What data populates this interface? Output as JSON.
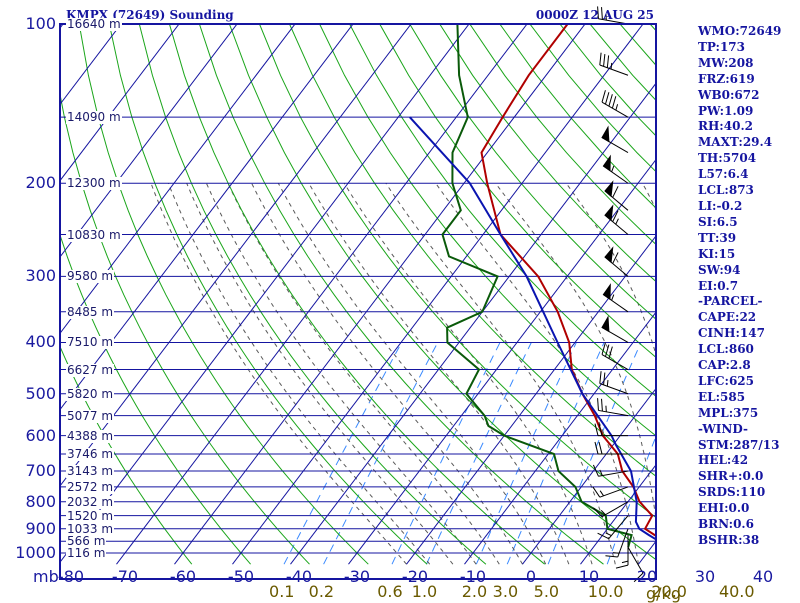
{
  "header": {
    "station": "KMPX (72649) Sounding",
    "time": "0000Z 12 AUG 25"
  },
  "indices": [
    "WMO:72649",
    "TP:173",
    "MW:208",
    "FRZ:619",
    "WB0:672",
    "PW:1.09",
    "RH:40.2",
    "MAXT:29.4",
    "TH:5704",
    "L57:6.4",
    "LCL:873",
    "LI:-0.2",
    "SI:6.5",
    "TT:39",
    "KI:15",
    "SW:94",
    "EI:0.7",
    "-PARCEL-",
    "CAPE:22",
    "CINH:147",
    "LCL:860",
    "CAP:2.8",
    "LFC:625",
    "EL:585",
    "MPL:375",
    "-WIND-",
    "STM:287/13",
    "HEL:42",
    "SHR+:0.0",
    "SRDS:110",
    "EHI:0.0",
    "BRN:0.6",
    "BSHR:38"
  ],
  "axes": {
    "mb_label": "mb",
    "gkg_label": "g/kg",
    "temp_labels": [
      "-80",
      "-70",
      "-60",
      "-50",
      "-40",
      "-30",
      "-20",
      "-10",
      "0",
      "10",
      "20",
      "30",
      "40"
    ],
    "mixing_ratio_labels": [
      "0.1",
      "0.2",
      "0.6",
      "1.0",
      "2.0",
      "3.0",
      "5.0",
      "10.0",
      "20.0",
      "40.0"
    ]
  },
  "pressure_labels": [
    "100",
    "200",
    "300",
    "400",
    "500",
    "600",
    "700",
    "800",
    "900",
    "1000"
  ],
  "height_labels": [
    "16640 m",
    "14090 m",
    "12300 m",
    "10830 m",
    "9580 m",
    "8485 m",
    "7510 m",
    "6627 m",
    "5820 m",
    "5077 m",
    "4388 m",
    "3746 m",
    "3143 m",
    "2572 m",
    "2032 m",
    "1520 m",
    "1033 m",
    "566 m",
    "116 m"
  ],
  "colors": {
    "frame": "#1515a0",
    "isobar": "#1515a0",
    "isotherm": "#1515a0",
    "dry_adiabat": "#1aa51a",
    "moist_adiabat": "#5a5a5a",
    "mixing_ratio": "#3a8aff",
    "temperature": "#b00000",
    "dewpoint": "#0a5a0a",
    "parcel": "#0a14b0",
    "wind": "#000000"
  },
  "chart_data": {
    "type": "skew-t",
    "pressure_range": [
      1000,
      100
    ],
    "temperature_range": [
      -80,
      40
    ],
    "series": [
      {
        "key": "temperature",
        "points": [
          [
            975,
            23.5
          ],
          [
            925,
            19
          ],
          [
            900,
            16.5
          ],
          [
            850,
            16
          ],
          [
            800,
            12
          ],
          [
            750,
            9
          ],
          [
            700,
            5
          ],
          [
            650,
            2
          ],
          [
            600,
            -3
          ],
          [
            550,
            -7
          ],
          [
            500,
            -12
          ],
          [
            450,
            -17
          ],
          [
            400,
            -21
          ],
          [
            350,
            -27
          ],
          [
            300,
            -35
          ],
          [
            250,
            -47
          ],
          [
            200,
            -56
          ],
          [
            175,
            -61
          ],
          [
            150,
            -62
          ],
          [
            125,
            -63
          ],
          [
            100,
            -63
          ]
        ]
      },
      {
        "key": "dewpoint",
        "points": [
          [
            975,
            16
          ],
          [
            925,
            15
          ],
          [
            900,
            10
          ],
          [
            850,
            8
          ],
          [
            800,
            2
          ],
          [
            750,
            -1
          ],
          [
            700,
            -6
          ],
          [
            650,
            -9
          ],
          [
            600,
            -20
          ],
          [
            575,
            -24
          ],
          [
            550,
            -26
          ],
          [
            500,
            -32
          ],
          [
            450,
            -33
          ],
          [
            400,
            -42
          ],
          [
            375,
            -44
          ],
          [
            350,
            -40
          ],
          [
            300,
            -42
          ],
          [
            275,
            -53
          ],
          [
            250,
            -57
          ],
          [
            225,
            -57
          ],
          [
            200,
            -62
          ],
          [
            175,
            -66
          ],
          [
            150,
            -68
          ],
          [
            125,
            -75
          ],
          [
            100,
            -82
          ]
        ]
      },
      {
        "key": "parcel",
        "points": [
          [
            975,
            23
          ],
          [
            925,
            18
          ],
          [
            900,
            15.5
          ],
          [
            873,
            14
          ],
          [
            800,
            11.5
          ],
          [
            700,
            6.5
          ],
          [
            625,
            0.5
          ],
          [
            600,
            -1.5
          ],
          [
            500,
            -12
          ],
          [
            400,
            -23
          ],
          [
            300,
            -37
          ],
          [
            250,
            -47
          ],
          [
            200,
            -59
          ],
          [
            150,
            -78
          ]
        ]
      }
    ],
    "wind_barbs": [
      {
        "p": 975,
        "dir": 150,
        "spd": 10
      },
      {
        "p": 925,
        "dir": 180,
        "spd": 15
      },
      {
        "p": 900,
        "dir": 200,
        "spd": 15
      },
      {
        "p": 850,
        "dir": 220,
        "spd": 15
      },
      {
        "p": 800,
        "dir": 240,
        "spd": 15
      },
      {
        "p": 750,
        "dir": 250,
        "spd": 15
      },
      {
        "p": 700,
        "dir": 260,
        "spd": 15
      },
      {
        "p": 650,
        "dir": 270,
        "spd": 20
      },
      {
        "p": 600,
        "dir": 270,
        "spd": 20
      },
      {
        "p": 550,
        "dir": 280,
        "spd": 25
      },
      {
        "p": 500,
        "dir": 290,
        "spd": 25
      },
      {
        "p": 450,
        "dir": 300,
        "spd": 30
      },
      {
        "p": 400,
        "dir": 300,
        "spd": 50
      },
      {
        "p": 350,
        "dir": 305,
        "spd": 55
      },
      {
        "p": 300,
        "dir": 310,
        "spd": 60
      },
      {
        "p": 250,
        "dir": 310,
        "spd": 65
      },
      {
        "p": 225,
        "dir": 310,
        "spd": 60
      },
      {
        "p": 200,
        "dir": 305,
        "spd": 55
      },
      {
        "p": 175,
        "dir": 300,
        "spd": 50
      },
      {
        "p": 150,
        "dir": 300,
        "spd": 45
      },
      {
        "p": 125,
        "dir": 290,
        "spd": 35
      },
      {
        "p": 100,
        "dir": 280,
        "spd": 25
      }
    ]
  }
}
